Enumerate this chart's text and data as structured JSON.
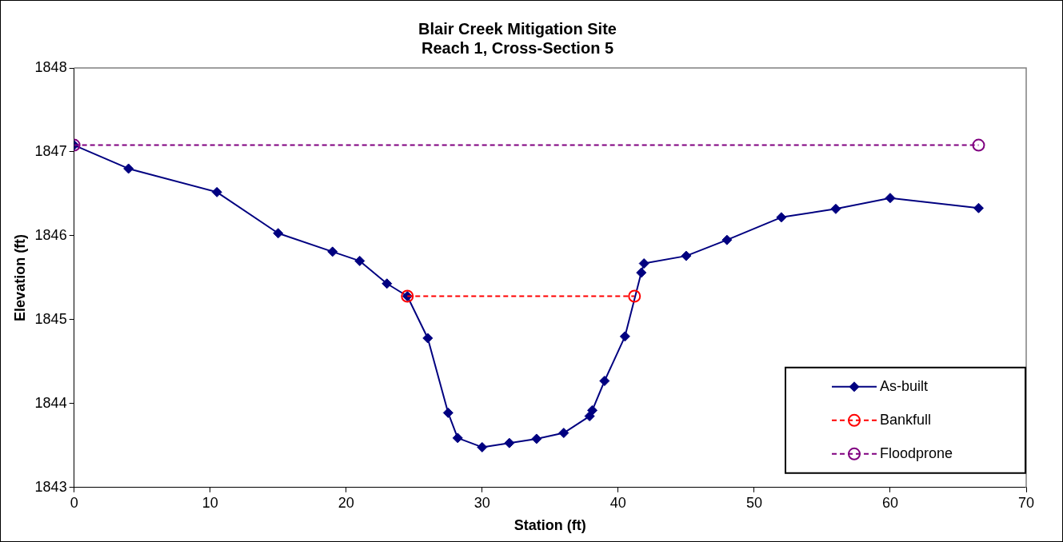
{
  "chart_data": {
    "type": "line",
    "title": "Blair Creek Mitigation Site\nReach 1, Cross-Section 5",
    "xlabel": "Station (ft)",
    "ylabel": "Elevation (ft)",
    "xlim": [
      0,
      70
    ],
    "xticks": [
      0,
      10,
      20,
      30,
      40,
      50,
      60,
      70
    ],
    "ylim": [
      1843,
      1848
    ],
    "yticks": [
      1843,
      1844,
      1845,
      1846,
      1847,
      1848
    ],
    "grid": false,
    "legend": "bottom right",
    "series": [
      {
        "name": "As-built",
        "color": "#000080",
        "marker": "diamond",
        "line_style": "solid",
        "x": [
          0,
          4,
          10.5,
          15,
          19,
          21,
          23,
          24.5,
          26,
          27.5,
          28.2,
          30,
          32,
          34,
          36,
          37.9,
          38.1,
          39,
          40.5,
          41.7,
          41.9,
          45,
          48,
          52,
          56,
          60,
          66.5
        ],
        "values": [
          1847.08,
          1846.8,
          1846.52,
          1846.03,
          1845.81,
          1845.7,
          1845.43,
          1845.28,
          1844.78,
          1843.89,
          1843.59,
          1843.48,
          1843.53,
          1843.58,
          1843.65,
          1843.85,
          1843.92,
          1844.27,
          1844.8,
          1845.56,
          1845.67,
          1845.76,
          1845.95,
          1846.22,
          1846.32,
          1846.45,
          1846.33
        ]
      },
      {
        "name": "Bankfull",
        "color": "#ff0000",
        "marker": "circle",
        "line_style": "dashed",
        "x": [
          24.5,
          41.2
        ],
        "values": [
          1845.28,
          1845.28
        ]
      },
      {
        "name": "Floodprone",
        "color": "#800080",
        "marker": "circle",
        "line_style": "dashed",
        "x": [
          0,
          66.5
        ],
        "values": [
          1847.08,
          1847.08
        ]
      }
    ]
  }
}
